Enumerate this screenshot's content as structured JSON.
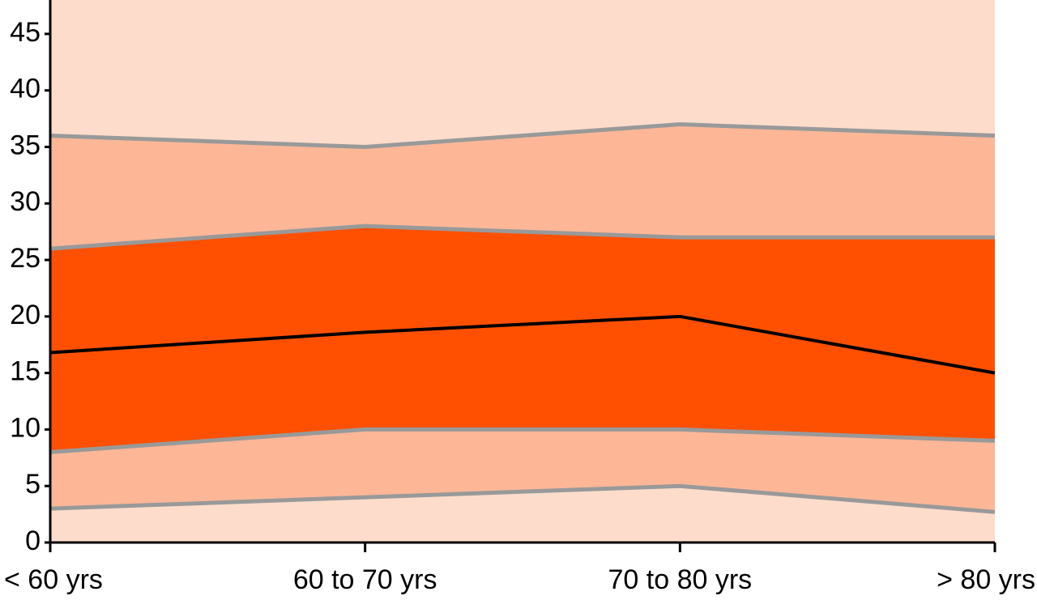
{
  "chart_data": {
    "type": "line",
    "categories": [
      "< 60 yrs",
      "60 to 70 yrs",
      "70 to 80 yrs",
      "> 80 yrs"
    ],
    "ylim": [
      0,
      48
    ],
    "yticks": [
      0,
      5,
      10,
      15,
      20,
      25,
      30,
      35,
      40,
      45
    ],
    "background": "#fddccb",
    "band_colors": [
      "#fdb797",
      "#fe5000",
      "#fe5000",
      "#fdb797"
    ],
    "series": [
      {
        "color": "#999999",
        "values": [
          3,
          4,
          5,
          2.7
        ]
      },
      {
        "color": "#999999",
        "values": [
          8,
          10,
          10,
          9
        ]
      },
      {
        "color": "#000000",
        "values": [
          16.8,
          18.6,
          20,
          15
        ]
      },
      {
        "color": "#999999",
        "values": [
          26,
          28,
          27,
          27
        ]
      },
      {
        "color": "#999999",
        "values": [
          36,
          35,
          37,
          36
        ]
      }
    ]
  }
}
